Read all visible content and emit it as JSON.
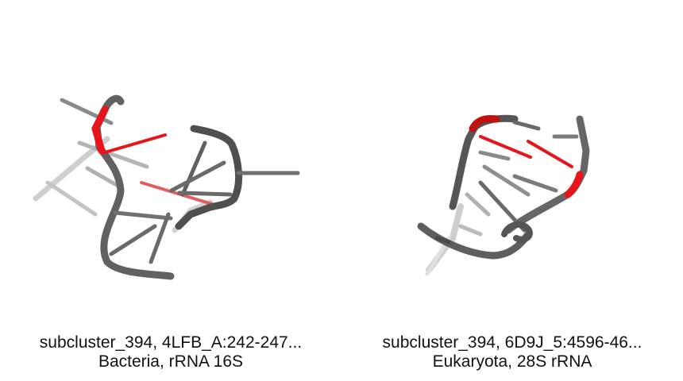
{
  "panels": [
    {
      "caption_line1": "subcluster_394, 4LFB_A:242-247...",
      "caption_line2": "Bacteria, rRNA 16S",
      "icon": "rna-3d-structure"
    },
    {
      "caption_line1": "subcluster_394, 6D9J_5:4596-46...",
      "caption_line2": "Eukaryota, 28S rRNA",
      "icon": "rna-3d-structure"
    }
  ],
  "colors": {
    "backbone": "#5f5f5f",
    "backbone_faded": "#bdbdbd",
    "highlight": "#e8141b",
    "caption": "#111111"
  }
}
